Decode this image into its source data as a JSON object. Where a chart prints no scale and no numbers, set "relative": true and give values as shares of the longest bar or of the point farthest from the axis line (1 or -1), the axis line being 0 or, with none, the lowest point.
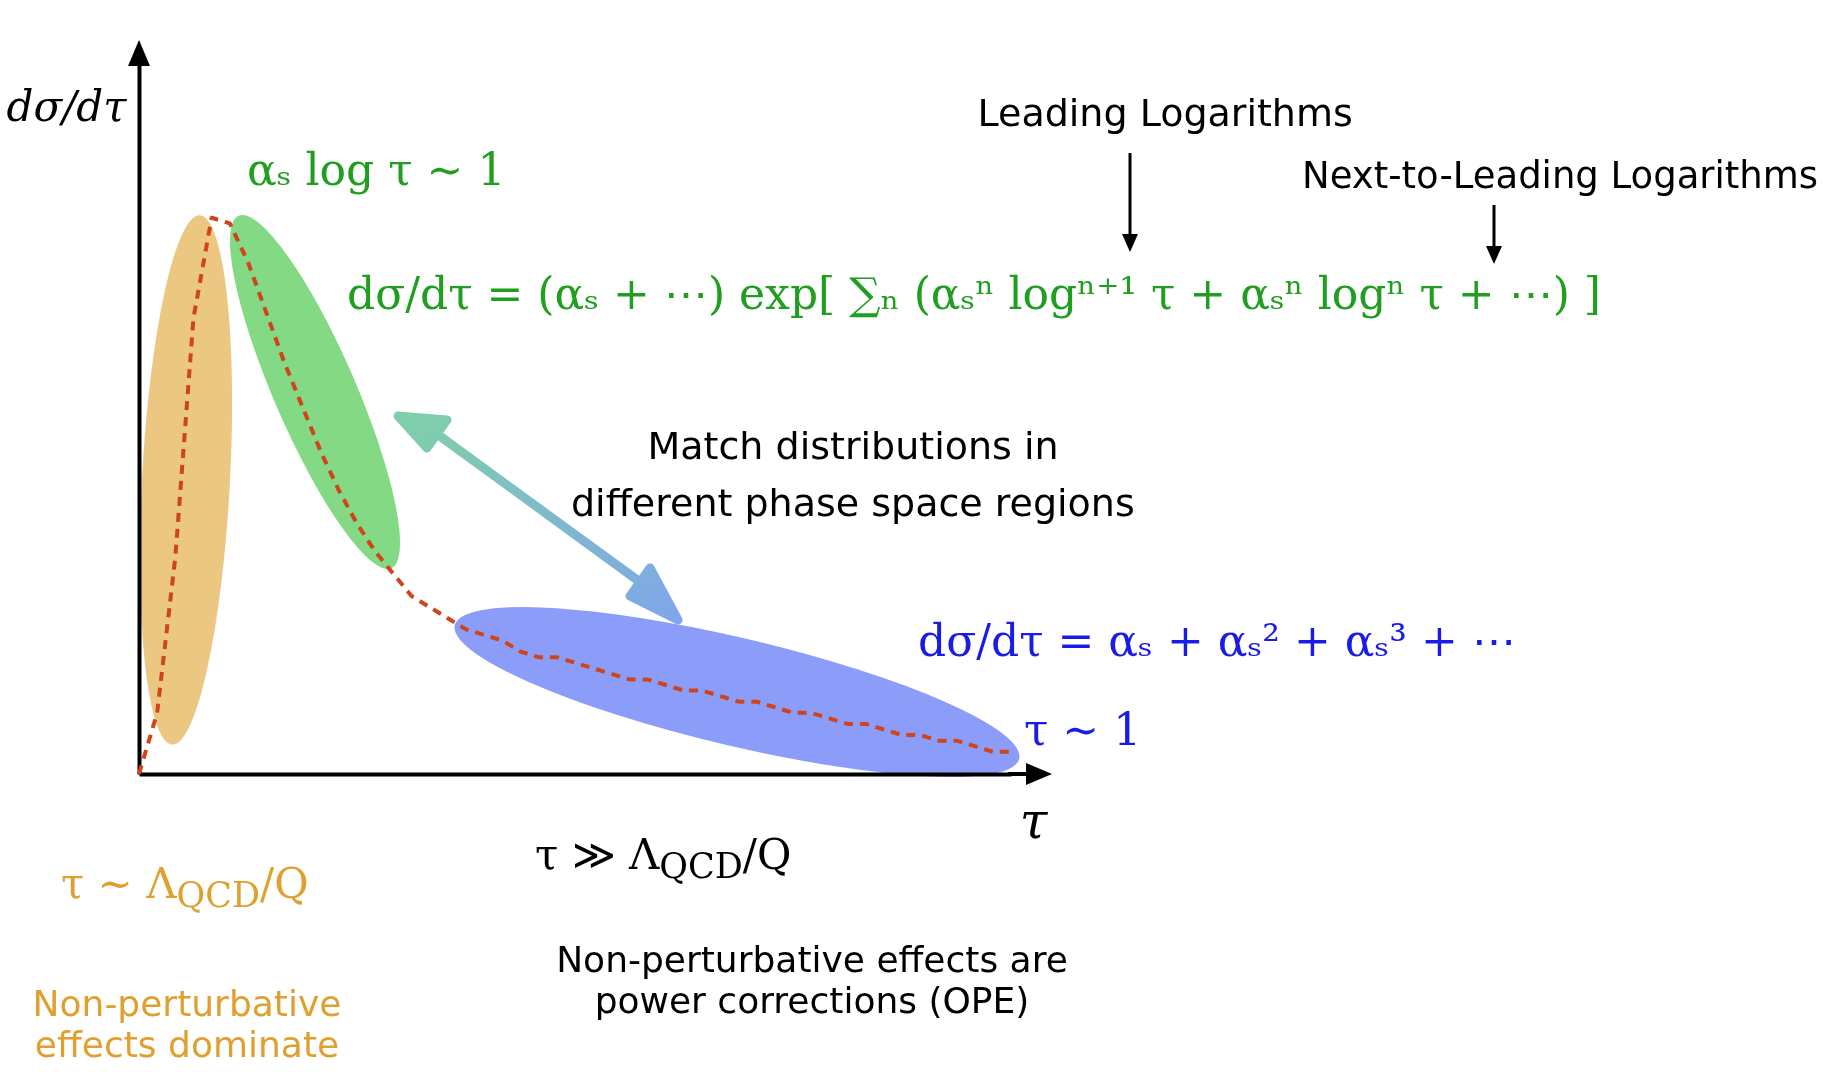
{
  "chart_data": {
    "type": "line",
    "relative": true,
    "xlabel": "τ",
    "ylabel": "dσ/dτ",
    "line_style": "dashed",
    "categories": [
      null,
      null,
      null,
      null,
      null,
      null,
      null,
      null,
      null,
      null,
      null,
      null,
      null,
      null,
      null,
      null,
      null,
      null,
      null,
      null,
      null,
      null,
      null,
      null,
      null,
      null,
      null,
      null,
      null,
      null,
      null,
      null,
      null,
      null,
      null,
      null,
      null,
      null,
      null,
      null,
      null,
      null,
      null,
      null,
      null,
      null,
      null,
      null,
      null
    ],
    "series": [
      {
        "color": "#d0441c",
        "values": [
          0,
          0.11,
          0.39,
          0.82,
          1,
          0.99,
          0.92,
          0.83,
          0.74,
          0.66,
          0.58,
          0.51,
          0.45,
          0.4,
          0.36,
          0.32,
          0.3,
          0.28,
          0.26,
          0.25,
          0.24,
          0.22,
          0.21,
          0.21,
          0.2,
          0.19,
          0.18,
          0.17,
          0.17,
          0.16,
          0.15,
          0.15,
          0.14,
          0.13,
          0.13,
          0.12,
          0.11,
          0.11,
          0.1,
          0.09,
          0.09,
          0.08,
          0.07,
          0.07,
          0.06,
          0.06,
          0.05,
          0.04,
          0.04
        ]
      }
    ],
    "annotations": [
      "αₛ log τ ∼ 1",
      "dσ/dτ = (αₛ + ⋯) exp[ ∑ₙ (αₛⁿ logⁿ⁺¹ τ + αₛⁿ logⁿ τ + ⋯) ]",
      "Leading Logarithms",
      "Next-to-Leading Logarithms",
      "Match distributions in",
      "different phase space regions",
      "dσ/dτ = αₛ + αₛ² + αₛ³ + ⋯",
      "τ ∼ 1",
      "τ ∼ Λ$_{QCD}$/Q",
      "Non-perturbative effects dominate",
      "τ ≫ Λ$_{QCD}$/Q",
      "Non-perturbative effects are power corrections (OPE)"
    ]
  }
}
